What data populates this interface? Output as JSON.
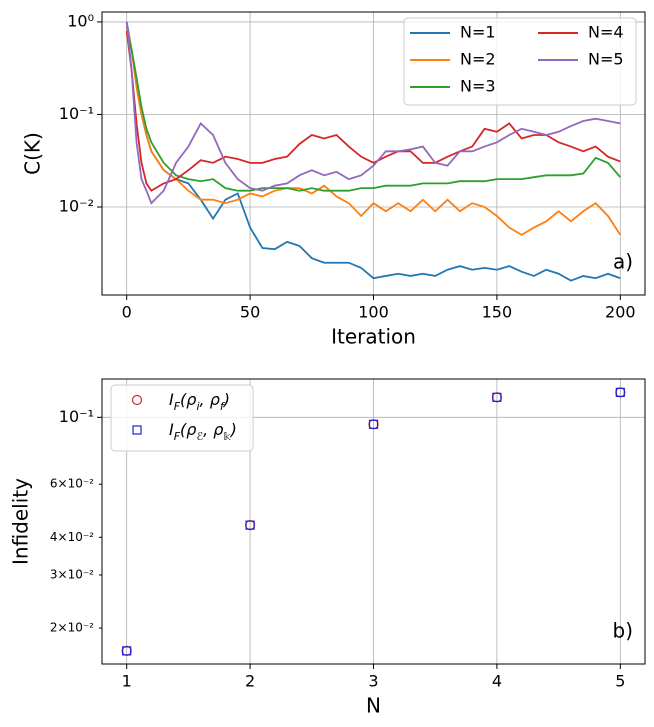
{
  "chart_data": [
    {
      "type": "line",
      "xlabel": "Iteration",
      "ylabel": "C(K)",
      "annotation": "a)",
      "grid": true,
      "log_y": true,
      "legend": "upper right",
      "legend_columns": 2,
      "xlim": [
        -10,
        210
      ],
      "xticks": [
        0,
        50,
        100,
        150,
        200
      ],
      "ylim": [
        0.00112,
        1.28
      ],
      "yticks": [
        {
          "value": 1,
          "label": "10⁰"
        },
        {
          "value": 0.1,
          "label": "10⁻¹"
        },
        {
          "value": 0.01,
          "label": "10⁻²"
        }
      ],
      "x": [
        0,
        2,
        4,
        6,
        8,
        10,
        15,
        20,
        25,
        30,
        35,
        40,
        45,
        50,
        55,
        60,
        65,
        70,
        75,
        80,
        85,
        90,
        95,
        100,
        105,
        110,
        115,
        120,
        125,
        130,
        135,
        140,
        145,
        150,
        155,
        160,
        165,
        170,
        175,
        180,
        185,
        190,
        195,
        200
      ],
      "series": [
        {
          "name": "N=1",
          "color": "#1f77b4",
          "values": [
            1.0,
            0.5,
            0.2,
            0.1,
            0.06,
            0.04,
            0.025,
            0.02,
            0.018,
            0.012,
            0.0075,
            0.012,
            0.014,
            0.006,
            0.0036,
            0.0035,
            0.0042,
            0.0038,
            0.0028,
            0.0025,
            0.0025,
            0.0025,
            0.0022,
            0.0017,
            0.0018,
            0.0019,
            0.0018,
            0.0019,
            0.0018,
            0.0021,
            0.0023,
            0.0021,
            0.0022,
            0.0021,
            0.0023,
            0.002,
            0.0018,
            0.0021,
            0.0019,
            0.0016,
            0.0018,
            0.0017,
            0.0019,
            0.0017
          ]
        },
        {
          "name": "N=2",
          "color": "#ff7f0e",
          "values": [
            0.9,
            0.5,
            0.2,
            0.1,
            0.06,
            0.04,
            0.025,
            0.02,
            0.015,
            0.012,
            0.012,
            0.011,
            0.012,
            0.014,
            0.013,
            0.015,
            0.016,
            0.016,
            0.014,
            0.017,
            0.013,
            0.011,
            0.008,
            0.011,
            0.009,
            0.011,
            0.009,
            0.012,
            0.009,
            0.012,
            0.009,
            0.011,
            0.01,
            0.008,
            0.006,
            0.005,
            0.006,
            0.007,
            0.009,
            0.007,
            0.009,
            0.011,
            0.008,
            0.005
          ]
        },
        {
          "name": "N=3",
          "color": "#2ca02c",
          "values": [
            0.8,
            0.5,
            0.25,
            0.12,
            0.07,
            0.05,
            0.03,
            0.022,
            0.02,
            0.019,
            0.02,
            0.016,
            0.015,
            0.015,
            0.016,
            0.016,
            0.016,
            0.015,
            0.016,
            0.015,
            0.015,
            0.015,
            0.016,
            0.016,
            0.017,
            0.017,
            0.017,
            0.018,
            0.018,
            0.018,
            0.019,
            0.019,
            0.019,
            0.02,
            0.02,
            0.02,
            0.021,
            0.022,
            0.022,
            0.022,
            0.023,
            0.034,
            0.03,
            0.021
          ]
        },
        {
          "name": "N=4",
          "color": "#d62728",
          "values": [
            0.8,
            0.3,
            0.08,
            0.03,
            0.018,
            0.015,
            0.018,
            0.02,
            0.025,
            0.032,
            0.03,
            0.035,
            0.033,
            0.03,
            0.03,
            0.033,
            0.035,
            0.048,
            0.06,
            0.055,
            0.06,
            0.045,
            0.035,
            0.03,
            0.035,
            0.04,
            0.04,
            0.03,
            0.03,
            0.035,
            0.04,
            0.045,
            0.07,
            0.065,
            0.08,
            0.055,
            0.06,
            0.06,
            0.05,
            0.045,
            0.04,
            0.045,
            0.035,
            0.031
          ]
        },
        {
          "name": "N=5",
          "color": "#9467bd",
          "values": [
            1.0,
            0.3,
            0.05,
            0.02,
            0.015,
            0.011,
            0.015,
            0.03,
            0.045,
            0.08,
            0.06,
            0.03,
            0.02,
            0.016,
            0.015,
            0.017,
            0.018,
            0.022,
            0.025,
            0.022,
            0.024,
            0.02,
            0.022,
            0.028,
            0.04,
            0.04,
            0.042,
            0.045,
            0.03,
            0.028,
            0.04,
            0.04,
            0.045,
            0.05,
            0.06,
            0.07,
            0.065,
            0.06,
            0.065,
            0.075,
            0.085,
            0.09,
            0.085,
            0.08
          ]
        }
      ]
    },
    {
      "type": "scatter",
      "xlabel": "N",
      "ylabel": "Infidelity",
      "annotation": "b)",
      "grid": true,
      "log_y": true,
      "legend": "upper left",
      "legend_columns": 1,
      "xlim": [
        0.8,
        5.2
      ],
      "xticks": [
        1,
        2,
        3,
        4,
        5
      ],
      "ylim": [
        0.0152,
        0.134
      ],
      "yticks": [
        {
          "value": 0.1,
          "label": "10⁻¹"
        }
      ],
      "yticks_minor": [
        {
          "value": 0.06,
          "label": "6×10⁻²"
        },
        {
          "value": 0.04,
          "label": "4×10⁻²"
        },
        {
          "value": 0.03,
          "label": "3×10⁻²"
        },
        {
          "value": 0.02,
          "label": "2×10⁻²"
        }
      ],
      "x": [
        1,
        2,
        3,
        4,
        5
      ],
      "series": [
        {
          "name": "I_F(ρ_i, ρ_f)",
          "color": "#d62728",
          "marker": "circle",
          "values": [
            0.0168,
            0.0439,
            0.0948,
            0.1165,
            0.121
          ]
        },
        {
          "name": "I_F(ρ_ℰ, ρ_𝕜)",
          "color": "#1f1fd6",
          "marker": "square",
          "values": [
            0.0168,
            0.0439,
            0.0948,
            0.1165,
            0.121
          ]
        }
      ]
    }
  ]
}
